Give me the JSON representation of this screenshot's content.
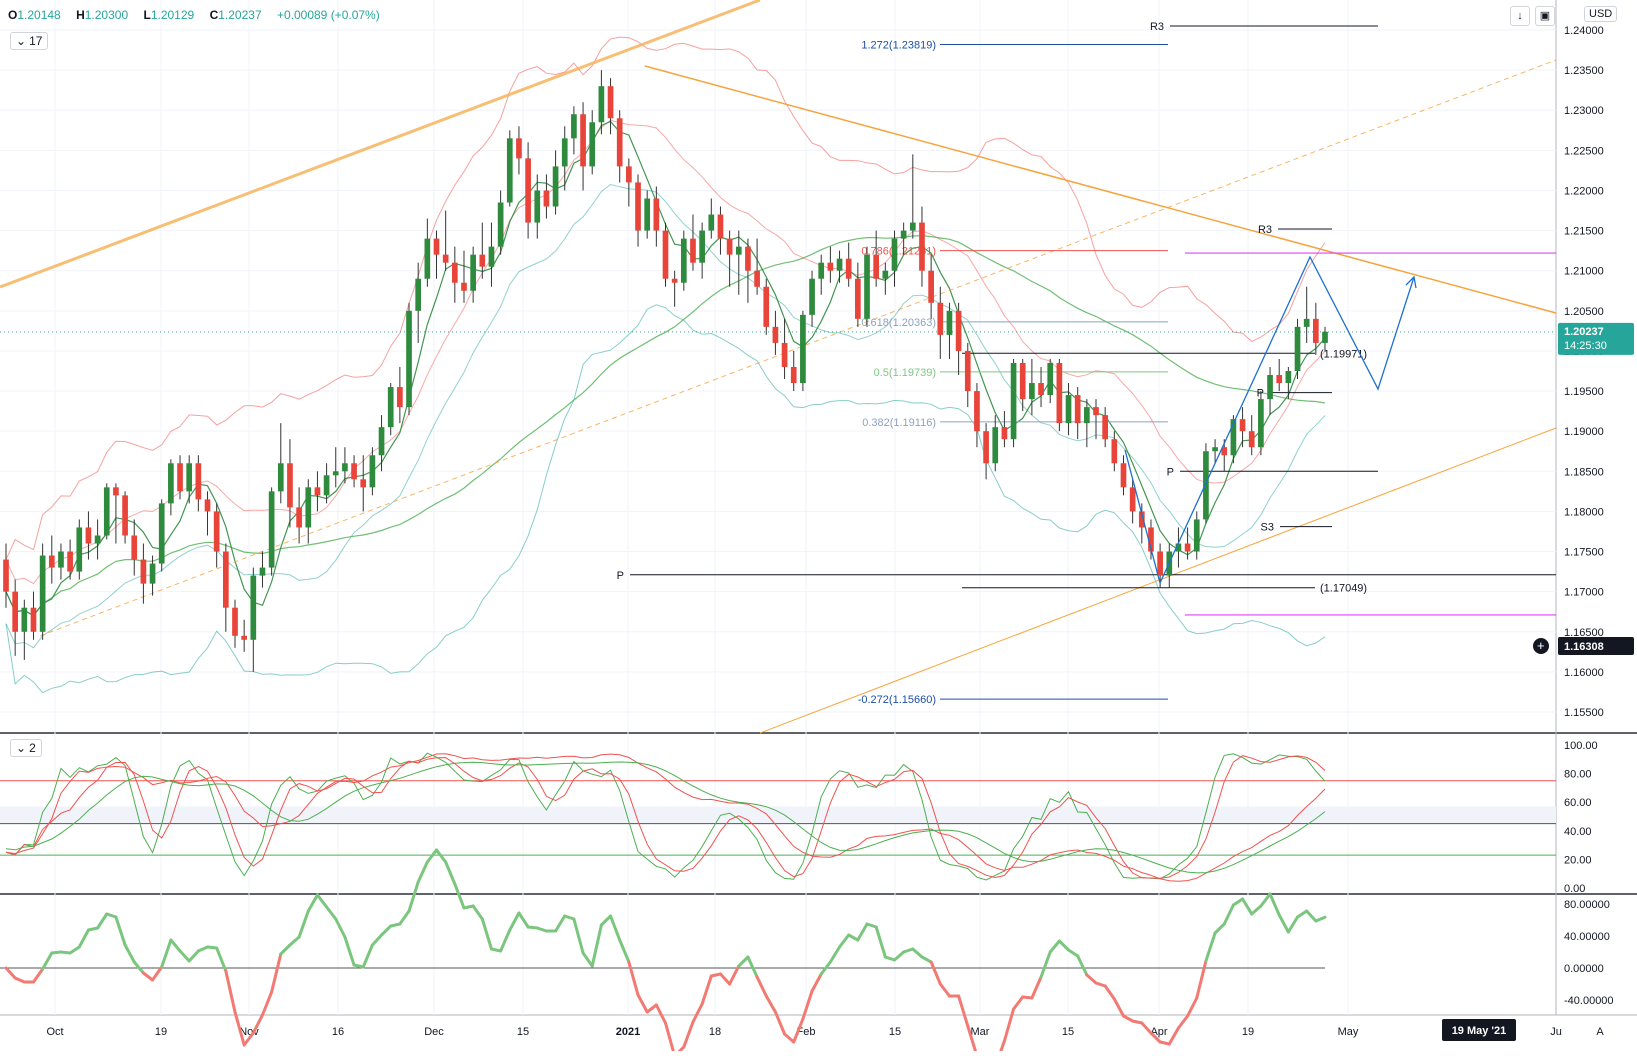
{
  "header": {
    "ohlc": {
      "o_label": "O",
      "o": "1.20148",
      "h_label": "H",
      "h": "1.20300",
      "l_label": "L",
      "l": "1.20129",
      "c_label": "C",
      "c": "1.20237",
      "chg": "+0.00089 (+0.07%)"
    },
    "main_badge": "17",
    "osc_badge": "2",
    "currency": "USD",
    "download_icon": "download-icon",
    "snapshot_icon": "camera-icon"
  },
  "colors": {
    "up": "#26a69a",
    "down": "#ef5350",
    "bull": "#2e8b3e",
    "bear": "#e8443a",
    "trend": "#f7a33c",
    "fib": "#1e4fa8",
    "pivot": "#131722",
    "magenta": "#e040fb"
  },
  "chart_data": [
    {
      "type": "candlestick",
      "symbol_price_axis": {
        "min": 1.155,
        "max": 1.24,
        "ticks": [
          "1.24000",
          "1.23500",
          "1.23000",
          "1.22500",
          "1.22000",
          "1.21500",
          "1.21000",
          "1.20500",
          "1.20000",
          "1.19500",
          "1.19000",
          "1.18500",
          "1.18000",
          "1.17500",
          "1.17000",
          "1.16500",
          "1.16000",
          "1.15500"
        ]
      },
      "current_price": "1.20237",
      "countdown": "14:25:30",
      "crosshair_price": "1.16308",
      "x_labels": [
        "Oct",
        "19",
        "Nov",
        "16",
        "Dec",
        "15",
        "2021",
        "18",
        "Feb",
        "15",
        "Mar",
        "15",
        "Apr",
        "19",
        "May",
        "Ju",
        "A"
      ],
      "date_marker": "19 May '21",
      "fib_levels": [
        {
          "label": "1.272(1.23819)",
          "value": 1.23819
        },
        {
          "label": "0.786(1.21251)",
          "value": 1.21251
        },
        {
          "label": "0.618(1.20363)",
          "value": 1.20363
        },
        {
          "label": "0.5(1.19739)",
          "value": 1.19739
        },
        {
          "label": "0.382(1.19116)",
          "value": 1.19116
        },
        {
          "label": "-0.272(1.15660)",
          "value": 1.1566
        }
      ],
      "pivots": [
        {
          "label": "R3",
          "value": 1.2405
        },
        {
          "label": "R3",
          "value": 1.2152
        },
        {
          "label": "P",
          "value": 1.1948
        },
        {
          "label": "P",
          "value": 1.185
        },
        {
          "label": "S3",
          "value": 1.1781
        },
        {
          "label": "P",
          "value": 1.1721
        }
      ],
      "price_marks": [
        {
          "label": "(1.19971)",
          "value": 1.19971
        },
        {
          "label": "(1.17049)",
          "value": 1.17049
        }
      ],
      "candles": [
        [
          1.174,
          1.176,
          1.168,
          1.17
        ],
        [
          1.17,
          1.1715,
          1.162,
          1.165
        ],
        [
          1.165,
          1.169,
          1.1615,
          1.168
        ],
        [
          1.168,
          1.17,
          1.164,
          1.165
        ],
        [
          1.165,
          1.176,
          1.164,
          1.1745
        ],
        [
          1.1745,
          1.177,
          1.171,
          1.173
        ],
        [
          1.173,
          1.176,
          1.1715,
          1.175
        ],
        [
          1.175,
          1.1765,
          1.1715,
          1.1725
        ],
        [
          1.1725,
          1.179,
          1.1715,
          1.178
        ],
        [
          1.178,
          1.18,
          1.174,
          1.176
        ],
        [
          1.176,
          1.179,
          1.174,
          1.177
        ],
        [
          1.177,
          1.1835,
          1.1765,
          1.183
        ],
        [
          1.183,
          1.1835,
          1.176,
          1.182
        ],
        [
          1.182,
          1.1825,
          1.176,
          1.177
        ],
        [
          1.177,
          1.179,
          1.172,
          1.174
        ],
        [
          1.174,
          1.176,
          1.1685,
          1.171
        ],
        [
          1.171,
          1.1745,
          1.1695,
          1.1735
        ],
        [
          1.1735,
          1.1815,
          1.1725,
          1.181
        ],
        [
          1.181,
          1.1865,
          1.1795,
          1.186
        ],
        [
          1.186,
          1.187,
          1.1815,
          1.1825
        ],
        [
          1.1825,
          1.187,
          1.181,
          1.186
        ],
        [
          1.186,
          1.187,
          1.18,
          1.1815
        ],
        [
          1.1815,
          1.1825,
          1.177,
          1.18
        ],
        [
          1.18,
          1.181,
          1.173,
          1.175
        ],
        [
          1.175,
          1.176,
          1.165,
          1.168
        ],
        [
          1.168,
          1.169,
          1.163,
          1.1645
        ],
        [
          1.1645,
          1.1665,
          1.1625,
          1.164
        ],
        [
          1.164,
          1.173,
          1.16,
          1.172
        ],
        [
          1.172,
          1.175,
          1.1705,
          1.173
        ],
        [
          1.173,
          1.183,
          1.172,
          1.1825
        ],
        [
          1.1825,
          1.191,
          1.181,
          1.186
        ],
        [
          1.186,
          1.189,
          1.178,
          1.1805
        ],
        [
          1.1805,
          1.183,
          1.176,
          1.178
        ],
        [
          1.178,
          1.184,
          1.176,
          1.183
        ],
        [
          1.183,
          1.185,
          1.18,
          1.182
        ],
        [
          1.182,
          1.186,
          1.181,
          1.1845
        ],
        [
          1.1845,
          1.188,
          1.183,
          1.185
        ],
        [
          1.185,
          1.188,
          1.1835,
          1.186
        ],
        [
          1.186,
          1.187,
          1.183,
          1.184
        ],
        [
          1.184,
          1.187,
          1.18,
          1.183
        ],
        [
          1.183,
          1.188,
          1.182,
          1.187
        ],
        [
          1.187,
          1.192,
          1.185,
          1.1905
        ],
        [
          1.1905,
          1.196,
          1.1895,
          1.1955
        ],
        [
          1.1955,
          1.198,
          1.191,
          1.193
        ],
        [
          1.193,
          1.206,
          1.192,
          1.205
        ],
        [
          1.205,
          1.211,
          1.201,
          1.209
        ],
        [
          1.209,
          1.2165,
          1.208,
          1.214
        ],
        [
          1.214,
          1.215,
          1.209,
          1.212
        ],
        [
          1.212,
          1.2175,
          1.21,
          1.211
        ],
        [
          1.211,
          1.213,
          1.206,
          1.2085
        ],
        [
          1.2085,
          1.2125,
          1.206,
          1.2075
        ],
        [
          1.2075,
          1.213,
          1.206,
          1.212
        ],
        [
          1.212,
          1.216,
          1.209,
          1.2105
        ],
        [
          1.2105,
          1.216,
          1.208,
          1.213
        ],
        [
          1.213,
          1.22,
          1.212,
          1.2185
        ],
        [
          1.2185,
          1.2275,
          1.218,
          1.2265
        ],
        [
          1.2265,
          1.228,
          1.222,
          1.224
        ],
        [
          1.224,
          1.226,
          1.214,
          1.216
        ],
        [
          1.216,
          1.222,
          1.214,
          1.22
        ],
        [
          1.22,
          1.222,
          1.2165,
          1.218
        ],
        [
          1.218,
          1.225,
          1.217,
          1.223
        ],
        [
          1.223,
          1.228,
          1.22,
          1.2265
        ],
        [
          1.2265,
          1.2305,
          1.2245,
          1.2295
        ],
        [
          1.2295,
          1.231,
          1.22,
          1.223
        ],
        [
          1.223,
          1.23,
          1.222,
          1.2285
        ],
        [
          1.2285,
          1.235,
          1.227,
          1.233
        ],
        [
          1.233,
          1.234,
          1.227,
          1.229
        ],
        [
          1.229,
          1.23,
          1.221,
          1.223
        ],
        [
          1.223,
          1.224,
          1.218,
          1.221
        ],
        [
          1.221,
          1.222,
          1.213,
          1.215
        ],
        [
          1.215,
          1.22,
          1.214,
          1.219
        ],
        [
          1.219,
          1.2205,
          1.213,
          1.215
        ],
        [
          1.215,
          1.216,
          1.208,
          1.209
        ],
        [
          1.209,
          1.21,
          1.2055,
          1.2085
        ],
        [
          1.2085,
          1.215,
          1.2075,
          1.214
        ],
        [
          1.214,
          1.217,
          1.21,
          1.211
        ],
        [
          1.211,
          1.216,
          1.209,
          1.215
        ],
        [
          1.215,
          1.219,
          1.214,
          1.217
        ],
        [
          1.217,
          1.218,
          1.212,
          1.214
        ],
        [
          1.214,
          1.215,
          1.208,
          1.212
        ],
        [
          1.212,
          1.215,
          1.207,
          1.213
        ],
        [
          1.213,
          1.214,
          1.206,
          1.21
        ],
        [
          1.21,
          1.214,
          1.207,
          1.208
        ],
        [
          1.208,
          1.209,
          1.202,
          1.203
        ],
        [
          1.203,
          1.205,
          1.1995,
          1.201
        ],
        [
          1.201,
          1.204,
          1.1965,
          1.198
        ],
        [
          1.198,
          1.2,
          1.195,
          1.196
        ],
        [
          1.196,
          1.205,
          1.195,
          1.2045
        ],
        [
          1.2045,
          1.21,
          1.203,
          1.209
        ],
        [
          1.209,
          1.212,
          1.207,
          1.211
        ],
        [
          1.211,
          1.213,
          1.2085,
          1.21
        ],
        [
          1.21,
          1.2125,
          1.2085,
          1.2115
        ],
        [
          1.2115,
          1.2135,
          1.208,
          1.209
        ],
        [
          1.209,
          1.211,
          1.203,
          1.204
        ],
        [
          1.204,
          1.213,
          1.203,
          1.212
        ],
        [
          1.212,
          1.215,
          1.208,
          1.209
        ],
        [
          1.209,
          1.211,
          1.207,
          1.21
        ],
        [
          1.21,
          1.215,
          1.208,
          1.214
        ],
        [
          1.214,
          1.216,
          1.212,
          1.215
        ],
        [
          1.215,
          1.2245,
          1.214,
          1.216
        ],
        [
          1.216,
          1.218,
          1.208,
          1.21
        ],
        [
          1.21,
          1.212,
          1.204,
          1.206
        ],
        [
          1.206,
          1.208,
          1.199,
          1.202
        ],
        [
          1.202,
          1.206,
          1.199,
          1.205
        ],
        [
          1.205,
          1.206,
          1.197,
          1.2
        ],
        [
          1.2,
          1.201,
          1.193,
          1.195
        ],
        [
          1.195,
          1.196,
          1.188,
          1.19
        ],
        [
          1.19,
          1.191,
          1.184,
          1.186
        ],
        [
          1.186,
          1.192,
          1.185,
          1.1905
        ],
        [
          1.1905,
          1.1925,
          1.188,
          1.189
        ],
        [
          1.189,
          1.199,
          1.188,
          1.1985
        ],
        [
          1.1985,
          1.199,
          1.1925,
          1.194
        ],
        [
          1.194,
          1.199,
          1.192,
          1.196
        ],
        [
          1.196,
          1.198,
          1.193,
          1.1945
        ],
        [
          1.1945,
          1.199,
          1.1935,
          1.1985
        ],
        [
          1.1985,
          1.199,
          1.19,
          1.191
        ],
        [
          1.191,
          1.196,
          1.1895,
          1.1945
        ],
        [
          1.1945,
          1.1955,
          1.189,
          1.191
        ],
        [
          1.191,
          1.194,
          1.188,
          1.193
        ],
        [
          1.193,
          1.194,
          1.189,
          1.192
        ],
        [
          1.192,
          1.193,
          1.188,
          1.189
        ],
        [
          1.189,
          1.19,
          1.185,
          1.186
        ],
        [
          1.186,
          1.187,
          1.182,
          1.183
        ],
        [
          1.183,
          1.184,
          1.1785,
          1.18
        ],
        [
          1.18,
          1.181,
          1.176,
          1.178
        ],
        [
          1.178,
          1.179,
          1.174,
          1.175
        ],
        [
          1.175,
          1.176,
          1.1705,
          1.172
        ],
        [
          1.172,
          1.176,
          1.1705,
          1.175
        ],
        [
          1.175,
          1.178,
          1.173,
          1.176
        ],
        [
          1.176,
          1.178,
          1.174,
          1.175
        ],
        [
          1.175,
          1.18,
          1.174,
          1.179
        ],
        [
          1.179,
          1.1885,
          1.1785,
          1.1875
        ],
        [
          1.1875,
          1.189,
          1.186,
          1.188
        ],
        [
          1.188,
          1.189,
          1.185,
          1.187
        ],
        [
          1.187,
          1.192,
          1.186,
          1.1915
        ],
        [
          1.1915,
          1.193,
          1.188,
          1.19
        ],
        [
          1.19,
          1.192,
          1.187,
          1.188
        ],
        [
          1.188,
          1.195,
          1.187,
          1.194
        ],
        [
          1.194,
          1.198,
          1.192,
          1.197
        ],
        [
          1.197,
          1.199,
          1.195,
          1.196
        ],
        [
          1.196,
          1.198,
          1.194,
          1.1975
        ],
        [
          1.1975,
          1.204,
          1.1965,
          1.203
        ],
        [
          1.203,
          1.208,
          1.201,
          1.204
        ],
        [
          1.204,
          1.206,
          1.1995,
          1.201
        ],
        [
          1.201,
          1.203,
          1.2,
          1.2024
        ]
      ],
      "lower_indicators": [
        {
          "name": "stochastic",
          "range": [
            0,
            100
          ],
          "ticks": [
            "100.00",
            "80.00",
            "60.00",
            "40.00",
            "20.00",
            "0.00"
          ],
          "levels": [
            75,
            45,
            23
          ]
        },
        {
          "name": "momentum",
          "range": [
            -55,
            85
          ],
          "ticks": [
            "80.00000",
            "40.00000",
            "0.00000",
            "-40.00000"
          ],
          "zero": 0
        }
      ]
    }
  ]
}
